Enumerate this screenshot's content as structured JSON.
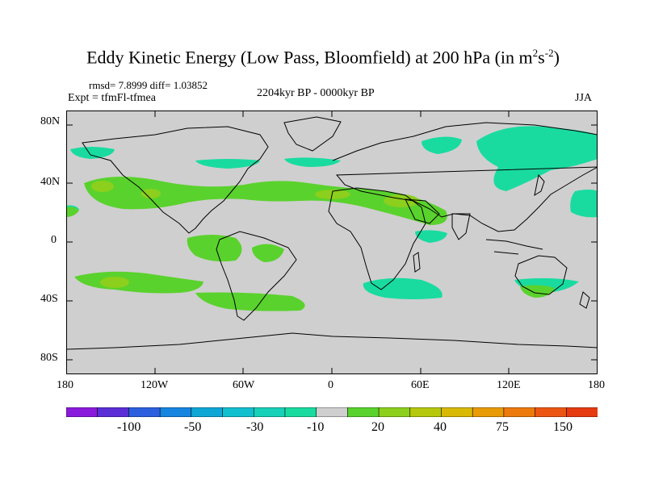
{
  "title": {
    "main": "Eddy Kinetic Energy (Low Pass, Bloomfield) at 200 hPa (in m",
    "sup1": "2",
    "mid": "s",
    "sup2": "-2",
    "end": ")"
  },
  "stats": "rmsd= 7.8999 diff= 1.03852",
  "expt": "Expt = tfmFl-tfmea",
  "period": "2204kyr BP - 0000kyr BP",
  "season": "JJA",
  "y_ticks": [
    "80N",
    "40N",
    "0",
    "40S",
    "80S"
  ],
  "x_ticks": [
    "180",
    "120W",
    "60W",
    "0",
    "60E",
    "120E",
    "180"
  ],
  "colorbar": {
    "labels": [
      "-100",
      "-50",
      "-30",
      "-10",
      "20",
      "40",
      "75",
      "150"
    ],
    "colors": [
      "#8a1adb",
      "#5a2ed6",
      "#2b5fde",
      "#1585e0",
      "#0fa6d6",
      "#12bfcf",
      "#17d1b8",
      "#19dba0",
      "#cfcfcf",
      "#5ad22d",
      "#8ccf1c",
      "#b5c80c",
      "#d8b905",
      "#e89b06",
      "#ec7a0c",
      "#ec5612",
      "#e63a10"
    ]
  },
  "colors": {
    "land_background": "#cfcfcf",
    "positive_low": "#5ad22d",
    "positive_mid": "#8ccf1c",
    "negative_low": "#19dba0",
    "coastline": "#000000"
  }
}
